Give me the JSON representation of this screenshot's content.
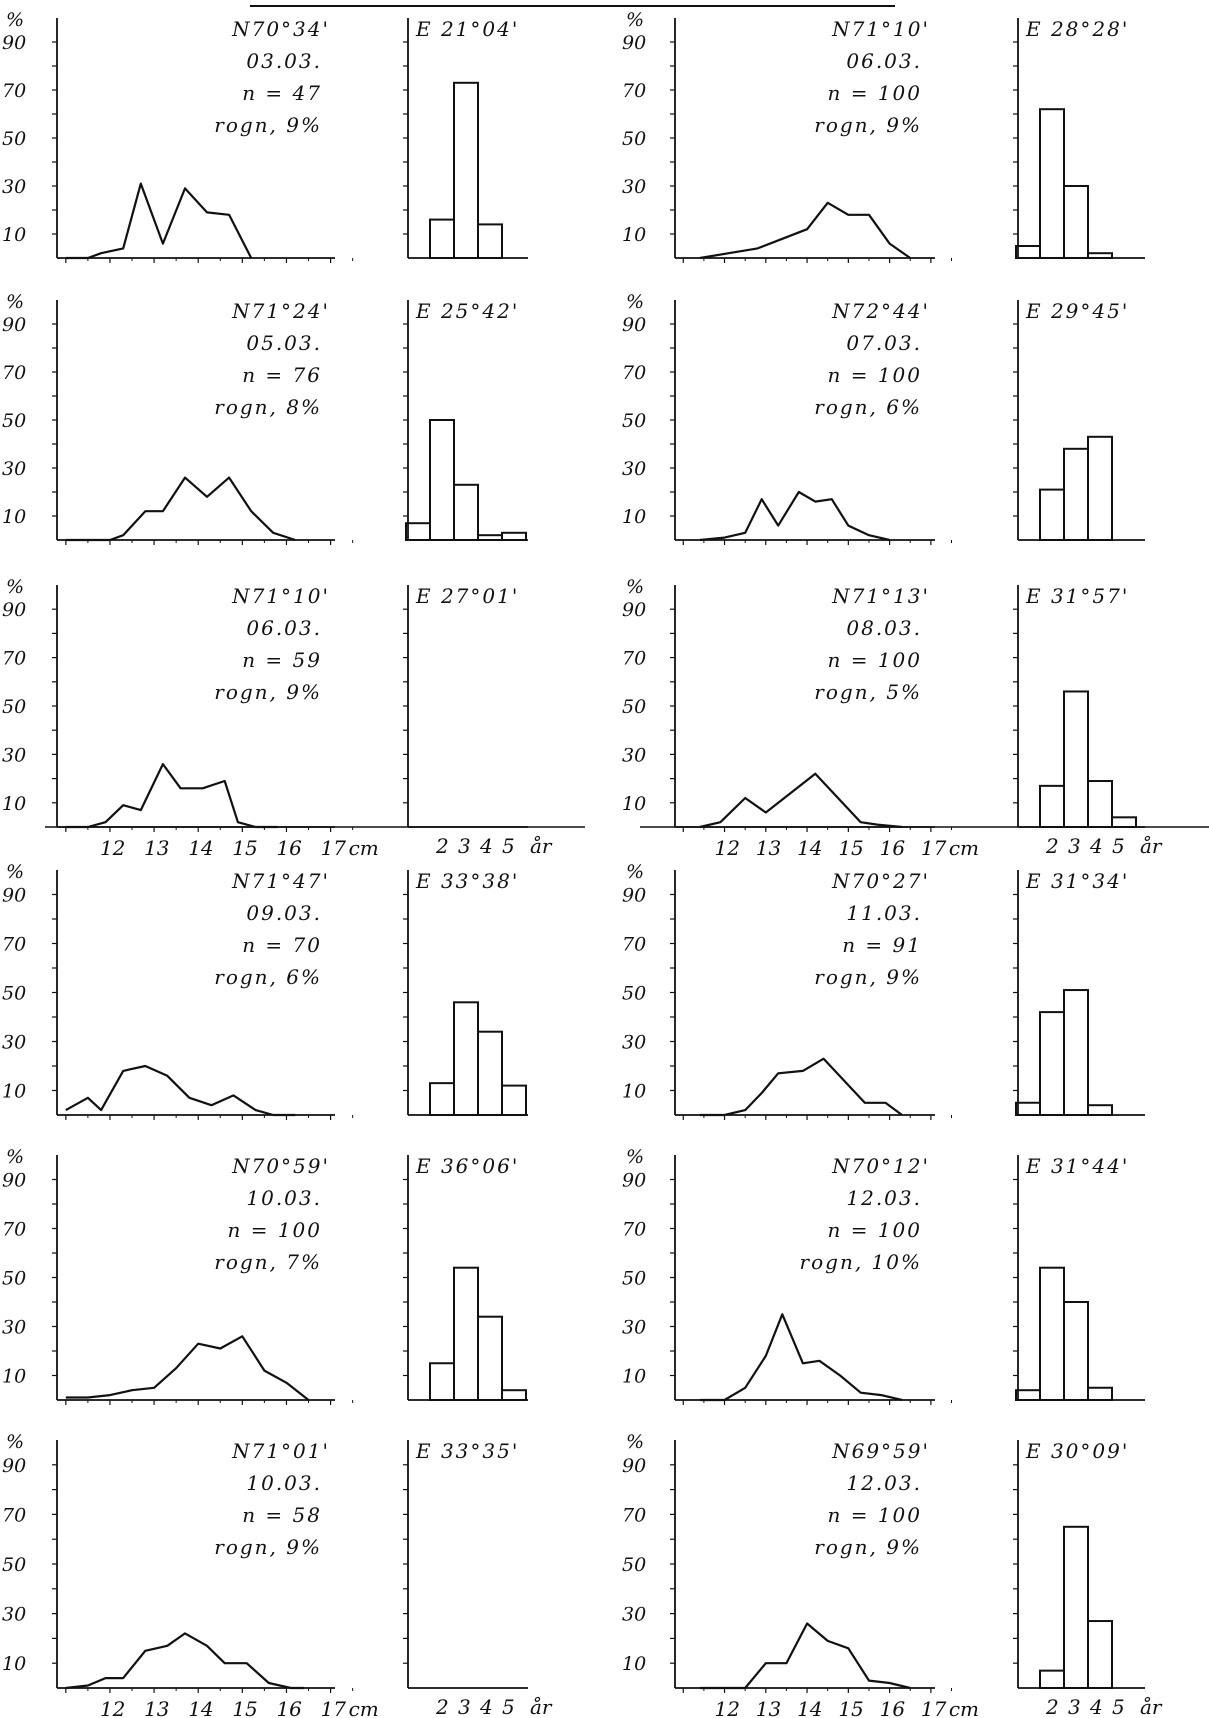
{
  "y_axis": {
    "unit": "%",
    "ticks": [
      "90",
      "70",
      "50",
      "30",
      "10"
    ]
  },
  "x_axis": {
    "length_ticks": [
      "12",
      "13",
      "14",
      "15",
      "16",
      "17"
    ],
    "length_unit": "cm",
    "age_ticks": [
      "2",
      "3",
      "4",
      "5"
    ],
    "age_unit": "år"
  },
  "chart_data": [
    {
      "type": "line+bar",
      "lat": "N70°34'",
      "lon": "E 21°04'",
      "date": "03.03.",
      "n": "n = 47",
      "roe": "rogn, 9%",
      "length_x": [
        11.0,
        11.5,
        11.8,
        12.3,
        12.7,
        13.2,
        13.7,
        14.2,
        14.7,
        15.2
      ],
      "length_pct": [
        0,
        0,
        2,
        4,
        31,
        6,
        29,
        19,
        18,
        0
      ],
      "age_x": [
        2,
        3,
        4,
        5
      ],
      "age_pct": [
        16,
        73,
        14,
        0
      ]
    },
    {
      "type": "line+bar",
      "lat": "N71°10'",
      "lon": "E 28°28'",
      "date": "06.03.",
      "n": "n = 100",
      "roe": "rogn, 9%",
      "length_x": [
        11.4,
        12.1,
        12.8,
        13.4,
        14.0,
        14.5,
        15.0,
        15.5,
        16.0,
        16.5
      ],
      "length_pct": [
        0,
        2,
        4,
        8,
        12,
        23,
        18,
        18,
        6,
        0
      ],
      "age_x": [
        1,
        2,
        3,
        4,
        5
      ],
      "age_pct": [
        5,
        62,
        30,
        2,
        0
      ]
    },
    {
      "type": "line+bar",
      "lat": "N71°24'",
      "lon": "E 25°42'",
      "date": "05.03.",
      "n": "n = 76",
      "roe": "rogn, 8%",
      "length_x": [
        11.0,
        12.0,
        12.3,
        12.8,
        13.2,
        13.7,
        14.2,
        14.7,
        15.2,
        15.7,
        16.2
      ],
      "length_pct": [
        0,
        0,
        2,
        12,
        12,
        26,
        18,
        26,
        12,
        3,
        0
      ],
      "age_x": [
        1,
        2,
        3,
        4,
        5
      ],
      "age_pct": [
        7,
        50,
        23,
        2,
        3
      ]
    },
    {
      "type": "line+bar",
      "lat": "N72°44'",
      "lon": "E 29°45'",
      "date": "07.03.",
      "n": "n = 100",
      "roe": "rogn, 6%",
      "length_x": [
        11.4,
        12.0,
        12.5,
        12.9,
        13.3,
        13.8,
        14.2,
        14.6,
        15.0,
        15.5,
        16.0
      ],
      "length_pct": [
        0,
        1,
        3,
        17,
        6,
        20,
        16,
        17,
        6,
        2,
        0
      ],
      "age_x": [
        2,
        3,
        4,
        5
      ],
      "age_pct": [
        21,
        38,
        43,
        0
      ]
    },
    {
      "type": "line+bar",
      "lat": "N71°10'",
      "lon": "E 27°01'",
      "date": "06.03.",
      "n": "n = 59",
      "roe": "rogn, 9%",
      "length_x": [
        11.0,
        11.5,
        11.9,
        12.3,
        12.7,
        13.2,
        13.6,
        14.1,
        14.6,
        14.9,
        15.3,
        15.8
      ],
      "length_pct": [
        0,
        0,
        2,
        9,
        7,
        26,
        16,
        16,
        19,
        2,
        0,
        0
      ],
      "age_x": [],
      "age_pct": []
    },
    {
      "type": "line+bar",
      "lat": "N71°13'",
      "lon": "E 31°57'",
      "date": "08.03.",
      "n": "n = 100",
      "roe": "rogn, 5%",
      "length_x": [
        11.4,
        11.9,
        12.5,
        13.0,
        14.2,
        15.3,
        15.7,
        16.3
      ],
      "length_pct": [
        0,
        2,
        12,
        6,
        22,
        2,
        1,
        0
      ],
      "age_x": [
        2,
        3,
        4,
        5
      ],
      "age_pct": [
        17,
        56,
        19,
        4
      ]
    },
    {
      "type": "line+bar",
      "lat": "N71°47'",
      "lon": "E 33°38'",
      "date": "09.03.",
      "n": "n = 70",
      "roe": "rogn, 6%",
      "length_x": [
        11.0,
        11.5,
        11.8,
        12.3,
        12.8,
        13.3,
        13.8,
        14.3,
        14.8,
        15.3,
        15.7,
        16.2
      ],
      "length_pct": [
        2,
        7,
        2,
        18,
        20,
        16,
        7,
        4,
        8,
        2,
        0,
        0
      ],
      "age_x": [
        2,
        3,
        4,
        5
      ],
      "age_pct": [
        13,
        46,
        34,
        12
      ]
    },
    {
      "type": "line+bar",
      "lat": "N70°27'",
      "lon": "E 31°34'",
      "date": "11.03.",
      "n": "n = 91",
      "roe": "rogn, 9%",
      "length_x": [
        11.4,
        12.0,
        12.5,
        12.9,
        13.3,
        13.9,
        14.4,
        14.9,
        15.4,
        15.9,
        16.3
      ],
      "length_pct": [
        0,
        0,
        2,
        9,
        17,
        18,
        23,
        14,
        5,
        5,
        0
      ],
      "age_x": [
        1,
        2,
        3,
        4,
        5
      ],
      "age_pct": [
        5,
        42,
        51,
        4,
        0
      ]
    },
    {
      "type": "line+bar",
      "lat": "N70°59'",
      "lon": "E 36°06'",
      "date": "10.03.",
      "n": "n = 100",
      "roe": "rogn, 7%",
      "length_x": [
        11.0,
        11.5,
        12.0,
        12.5,
        13.0,
        13.5,
        14.0,
        14.5,
        15.0,
        15.5,
        16.0,
        16.5
      ],
      "length_pct": [
        1,
        1,
        2,
        4,
        5,
        13,
        23,
        21,
        26,
        12,
        7,
        0
      ],
      "age_x": [
        2,
        3,
        4,
        5
      ],
      "age_pct": [
        15,
        54,
        34,
        4
      ]
    },
    {
      "type": "line+bar",
      "lat": "N70°12'",
      "lon": "E 31°44'",
      "date": "12.03.",
      "n": "n = 100",
      "roe": "rogn, 10%",
      "length_x": [
        11.4,
        12.0,
        12.5,
        13.0,
        13.4,
        13.9,
        14.3,
        14.8,
        15.3,
        15.8,
        16.3
      ],
      "length_pct": [
        0,
        0,
        5,
        18,
        35,
        15,
        16,
        10,
        3,
        2,
        0
      ],
      "age_x": [
        1,
        2,
        3,
        4,
        5
      ],
      "age_pct": [
        4,
        54,
        40,
        5,
        0
      ]
    },
    {
      "type": "line+bar",
      "lat": "N71°01'",
      "lon": "E 33°35'",
      "date": "10.03.",
      "n": "n = 58",
      "roe": "rogn, 9%",
      "length_x": [
        11.0,
        11.5,
        11.9,
        12.3,
        12.8,
        13.3,
        13.7,
        14.2,
        14.6,
        15.1,
        15.6,
        16.1,
        16.4
      ],
      "length_pct": [
        0,
        1,
        4,
        4,
        15,
        17,
        22,
        17,
        10,
        10,
        2,
        0,
        0
      ],
      "age_x": [],
      "age_pct": []
    },
    {
      "type": "line+bar",
      "lat": "N69°59'",
      "lon": "E 30°09'",
      "date": "12.03.",
      "n": "n = 100",
      "roe": "rogn, 9%",
      "length_x": [
        11.4,
        12.0,
        12.5,
        13.0,
        13.5,
        14.0,
        14.5,
        15.0,
        15.5,
        16.0,
        16.5
      ],
      "length_pct": [
        0,
        0,
        0,
        10,
        10,
        26,
        19,
        16,
        3,
        2,
        0
      ],
      "age_x": [
        2,
        3,
        4,
        5
      ],
      "age_pct": [
        7,
        65,
        27,
        0
      ]
    }
  ]
}
